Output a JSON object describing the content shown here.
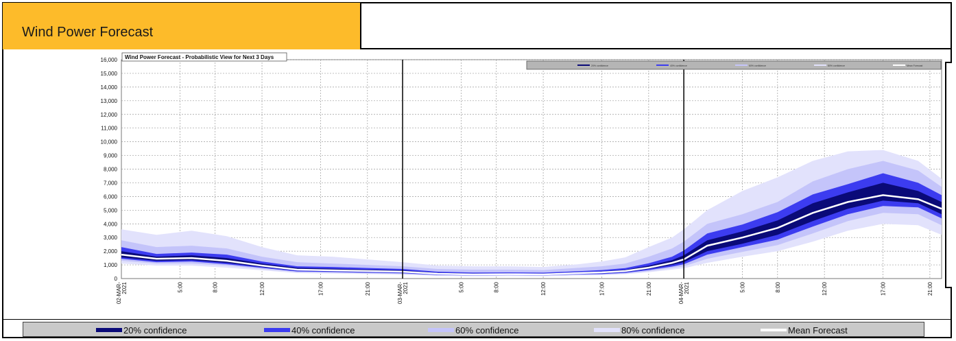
{
  "header": {
    "title": "Wind Power Forecast"
  },
  "chart_data": {
    "type": "area",
    "title": "Wind Power Forecast - Probabilistic View for Next 3 Days",
    "xlabel": "",
    "ylabel": "",
    "ylim": [
      0,
      16000
    ],
    "yticks": [
      "0",
      "1,000",
      "2,000",
      "3,000",
      "4,000",
      "5,000",
      "6,000",
      "7,000",
      "8,000",
      "9,000",
      "10,000",
      "11,000",
      "12,000",
      "13,000",
      "14,000",
      "15,000",
      "16,000"
    ],
    "xlim": [
      0,
      70
    ],
    "xticks": [
      {
        "x": 0,
        "label": "02-MAR-2021"
      },
      {
        "x": 5,
        "label": "5:00"
      },
      {
        "x": 8,
        "label": "8:00"
      },
      {
        "x": 12,
        "label": "12:00"
      },
      {
        "x": 17,
        "label": "17:00"
      },
      {
        "x": 21,
        "label": "21:00"
      },
      {
        "x": 24,
        "label": "03-MAR-2021"
      },
      {
        "x": 29,
        "label": "5:00"
      },
      {
        "x": 32,
        "label": "8:00"
      },
      {
        "x": 36,
        "label": "12:00"
      },
      {
        "x": 41,
        "label": "17:00"
      },
      {
        "x": 45,
        "label": "21:00"
      },
      {
        "x": 48,
        "label": "04-MAR-2021"
      },
      {
        "x": 53,
        "label": "5:00"
      },
      {
        "x": 56,
        "label": "8:00"
      },
      {
        "x": 60,
        "label": "12:00"
      },
      {
        "x": 65,
        "label": "17:00"
      },
      {
        "x": 69,
        "label": "21:00"
      }
    ],
    "day_boundaries": [
      24,
      48
    ],
    "x": [
      0,
      3,
      6,
      9,
      12,
      15,
      18,
      21,
      24,
      27,
      30,
      33,
      36,
      39,
      41,
      43,
      45,
      47,
      48,
      50,
      53,
      56,
      59,
      62,
      65,
      68,
      70
    ],
    "mean": [
      1750,
      1450,
      1500,
      1300,
      950,
      650,
      600,
      550,
      500,
      350,
      300,
      320,
      300,
      400,
      450,
      550,
      800,
      1150,
      1400,
      2400,
      3000,
      3700,
      4800,
      5600,
      6100,
      5800,
      5100
    ],
    "band20": {
      "low": [
        1550,
        1300,
        1350,
        1150,
        850,
        580,
        530,
        480,
        440,
        300,
        260,
        280,
        260,
        350,
        380,
        480,
        700,
        1000,
        1200,
        2000,
        2550,
        3200,
        4200,
        5100,
        5700,
        5500,
        4700
      ],
      "high": [
        2000,
        1600,
        1700,
        1500,
        1100,
        780,
        720,
        650,
        600,
        420,
        370,
        380,
        360,
        460,
        520,
        640,
        940,
        1350,
        1700,
        2800,
        3450,
        4250,
        5500,
        6300,
        7000,
        6400,
        5600
      ]
    },
    "band40": {
      "low": [
        1450,
        1200,
        1250,
        1050,
        780,
        520,
        480,
        430,
        390,
        260,
        230,
        250,
        230,
        310,
        330,
        420,
        620,
        880,
        1050,
        1750,
        2300,
        2850,
        3800,
        4700,
        5300,
        5200,
        4400
      ],
      "high": [
        2300,
        1800,
        1900,
        1750,
        1250,
        900,
        850,
        770,
        700,
        500,
        440,
        450,
        430,
        540,
        620,
        760,
        1120,
        1600,
        2050,
        3300,
        3950,
        4850,
        6150,
        6900,
        7700,
        7000,
        6100
      ]
    },
    "band60": {
      "low": [
        1300,
        1100,
        1100,
        950,
        700,
        470,
        430,
        380,
        340,
        230,
        200,
        220,
        200,
        270,
        290,
        370,
        540,
        770,
        900,
        1450,
        1950,
        2450,
        3300,
        4200,
        4800,
        4700,
        3900
      ],
      "high": [
        2800,
        2300,
        2400,
        2200,
        1600,
        1200,
        1100,
        1000,
        900,
        700,
        650,
        650,
        620,
        780,
        900,
        1100,
        1600,
        2200,
        2700,
        4000,
        4700,
        5600,
        7100,
        8000,
        8600,
        7900,
        6700
      ]
    },
    "band80": {
      "low": [
        1100,
        950,
        950,
        800,
        600,
        400,
        370,
        330,
        290,
        200,
        170,
        190,
        170,
        230,
        250,
        320,
        460,
        650,
        750,
        1150,
        1600,
        2000,
        2700,
        3500,
        4000,
        3900,
        3200
      ],
      "high": [
        3600,
        3200,
        3500,
        3100,
        2300,
        1700,
        1600,
        1400,
        1200,
        950,
        900,
        900,
        850,
        1050,
        1250,
        1550,
        2300,
        3000,
        3600,
        5000,
        6400,
        7400,
        8600,
        9300,
        9400,
        8600,
        7300
      ]
    },
    "legend": [
      {
        "label": "20% confidence",
        "color": "#0a0a78"
      },
      {
        "label": "40% confidence",
        "color": "#3c3cf0"
      },
      {
        "label": "60% confidence",
        "color": "#c4c4fa"
      },
      {
        "label": "80% confidence",
        "color": "#e2e2fc"
      },
      {
        "label": "Mean Forecast",
        "color": "#ffffff"
      }
    ]
  }
}
